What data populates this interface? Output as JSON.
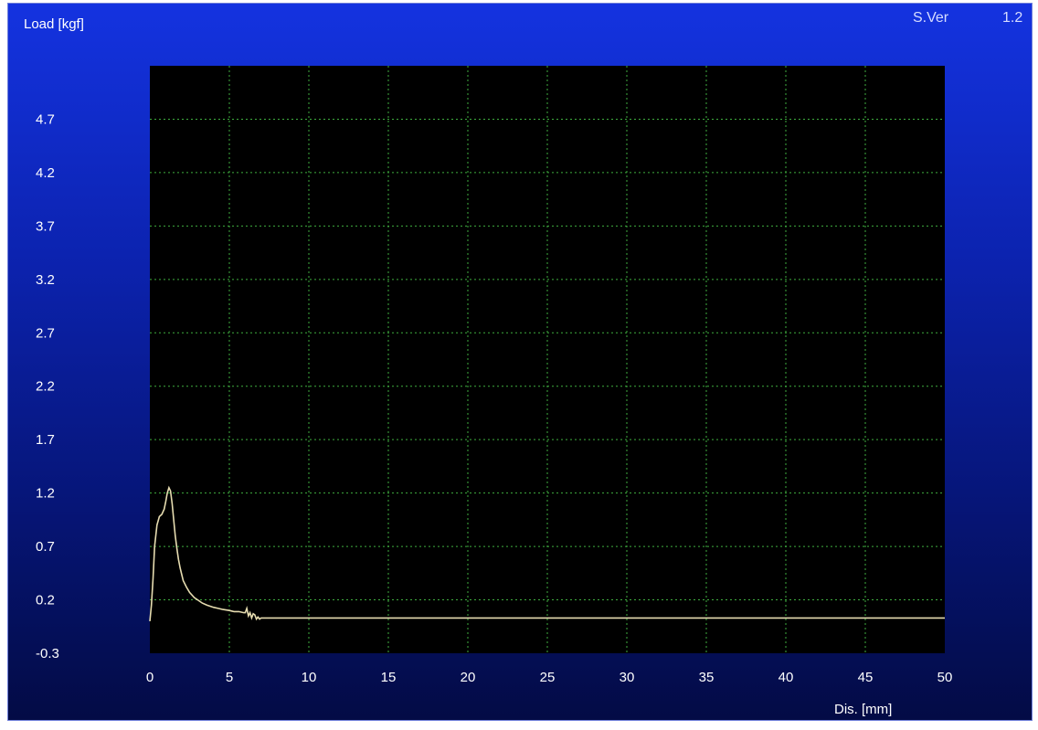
{
  "header": {
    "version_label": "S.Ver",
    "version_value": "1.2"
  },
  "colors": {
    "plot_background": "#000000",
    "grid": "#3fae3f",
    "series_line": "#e6dcb0",
    "label_text": "#ffffff"
  },
  "chart_data": {
    "type": "line",
    "title": "",
    "xlabel": "Dis. [mm]",
    "ylabel": "Load [kgf]",
    "xlim": [
      0,
      50
    ],
    "ylim": [
      -0.3,
      5.2
    ],
    "grid": true,
    "x_ticks": [
      0,
      5,
      10,
      15,
      20,
      25,
      30,
      35,
      40,
      45,
      50
    ],
    "y_ticks": [
      -0.3,
      0.2,
      0.7,
      1.2,
      1.7,
      2.2,
      2.7,
      3.2,
      3.7,
      4.2,
      4.7
    ],
    "series": [
      {
        "x": [
          0.0,
          0.1,
          0.2,
          0.3,
          0.45,
          0.6,
          0.75,
          0.9,
          1.0,
          1.1,
          1.2,
          1.3,
          1.4,
          1.5,
          1.6,
          1.7,
          1.8,
          1.9,
          2.0,
          2.1,
          2.3,
          2.5,
          2.8,
          3.0,
          3.3,
          3.6,
          4.0,
          4.3,
          4.6,
          5.0,
          5.3,
          5.6,
          5.9,
          6.0,
          6.1,
          6.2,
          6.3,
          6.4,
          6.5,
          6.6,
          6.7,
          6.8,
          6.9,
          7.0,
          7.2,
          7.5,
          8.0,
          10.0,
          20.0,
          30.0,
          40.0,
          50.0
        ],
        "y": [
          0.0,
          0.15,
          0.4,
          0.7,
          0.9,
          0.98,
          1.0,
          1.05,
          1.12,
          1.2,
          1.25,
          1.22,
          1.1,
          0.95,
          0.8,
          0.68,
          0.58,
          0.5,
          0.44,
          0.38,
          0.32,
          0.27,
          0.22,
          0.2,
          0.17,
          0.15,
          0.13,
          0.12,
          0.11,
          0.1,
          0.09,
          0.09,
          0.08,
          0.08,
          0.12,
          0.05,
          0.08,
          0.03,
          0.07,
          0.06,
          0.02,
          0.04,
          0.02,
          0.03,
          0.03,
          0.03,
          0.03,
          0.03,
          0.03,
          0.03,
          0.03,
          0.03
        ]
      }
    ]
  }
}
